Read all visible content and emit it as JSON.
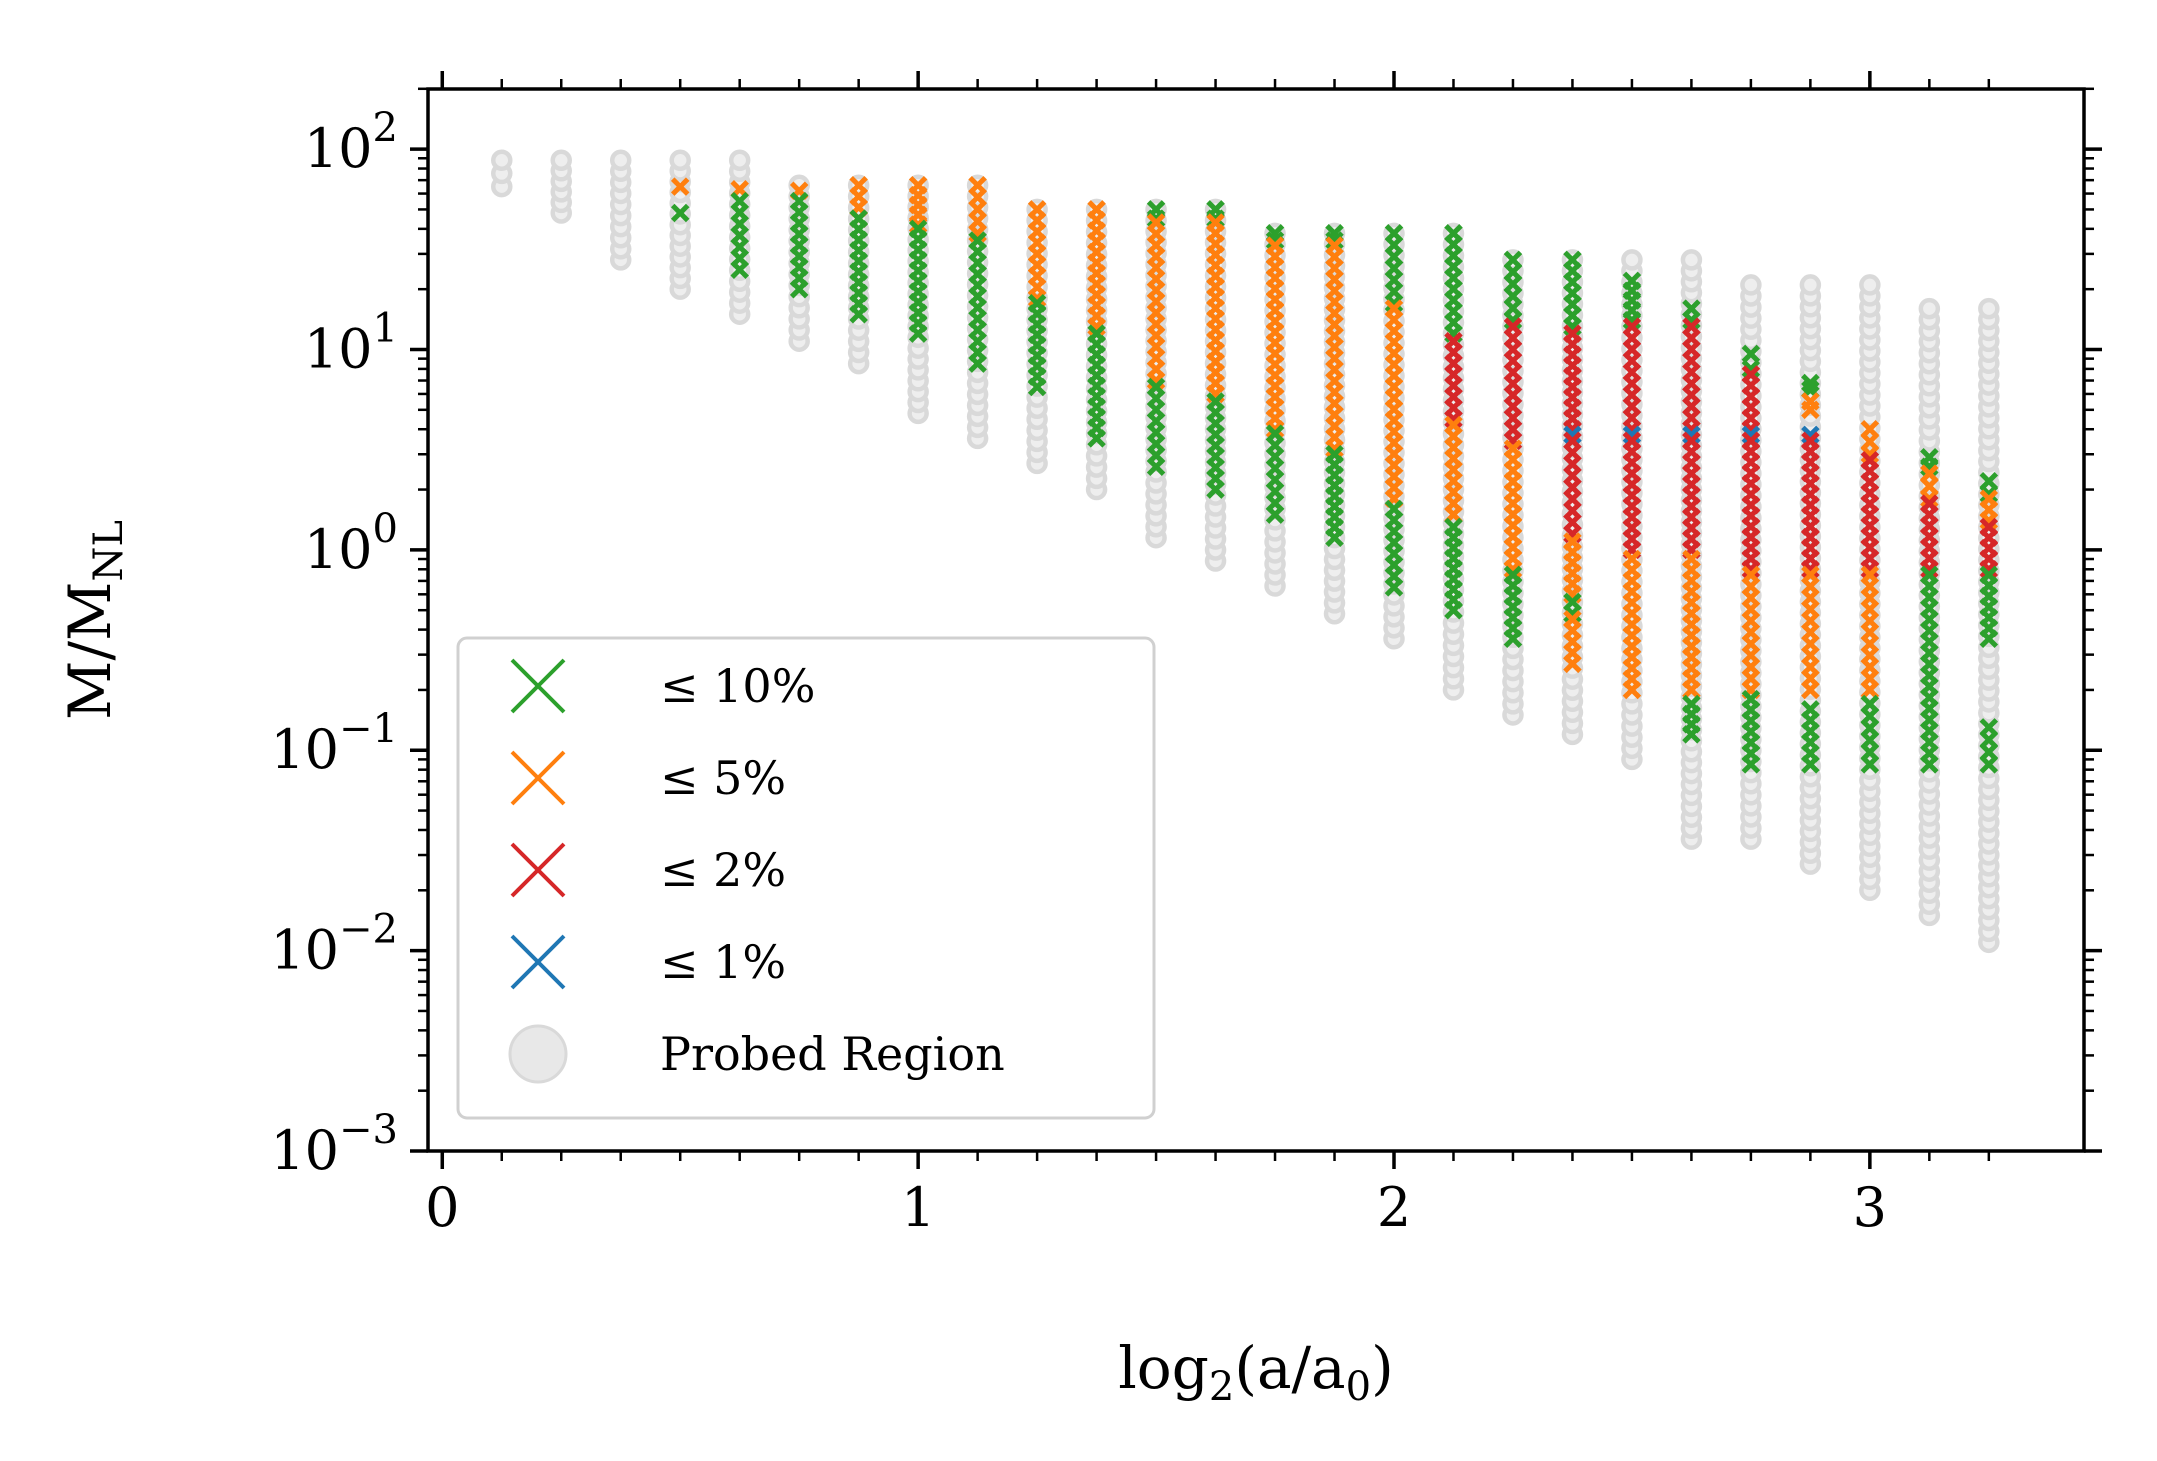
{
  "chart_data": {
    "type": "scatter",
    "xlabel": "log2(a/a0)",
    "ylabel": "M/MNL",
    "xlim": [
      -0.03,
      3.45
    ],
    "ylim_log10": [
      -3,
      2.3
    ],
    "xticks": [
      {
        "value": 0,
        "label": "0"
      },
      {
        "value": 1,
        "label": "1"
      },
      {
        "value": 2,
        "label": "2"
      },
      {
        "value": 3,
        "label": "3"
      }
    ],
    "yticks": [
      {
        "exp": 2,
        "base": "10",
        "sup": "2"
      },
      {
        "exp": 1,
        "base": "10",
        "sup": "1"
      },
      {
        "exp": 0,
        "base": "10",
        "sup": "0"
      },
      {
        "exp": -1,
        "base": "10",
        "sup": "−1"
      },
      {
        "exp": -2,
        "base": "10",
        "sup": "−2"
      },
      {
        "exp": -3,
        "base": "10",
        "sup": "−3"
      }
    ],
    "colors": {
      "probed": "#d9d9d9",
      "p10": "#2ca02c",
      "p5": "#ff7f0e",
      "p2": "#d62728",
      "p1": "#1f77b4"
    },
    "legend": {
      "position": "lower-left",
      "entries": [
        {
          "key": "p10",
          "marker": "x",
          "label": "≤ 10%"
        },
        {
          "key": "p5",
          "marker": "x",
          "label": "≤ 5%"
        },
        {
          "key": "p2",
          "marker": "x",
          "label": "≤ 2%"
        },
        {
          "key": "p1",
          "marker": "x",
          "label": "≤ 1%"
        },
        {
          "key": "probed",
          "marker": "o",
          "label": "Probed Region"
        }
      ]
    },
    "columns": [
      {
        "x": 0.125,
        "probed": [
          65,
          88
        ],
        "accurate": []
      },
      {
        "x": 0.25,
        "probed": [
          48,
          88
        ],
        "accurate": []
      },
      {
        "x": 0.375,
        "probed": [
          28,
          88
        ],
        "accurate": []
      },
      {
        "x": 0.5,
        "probed": [
          20,
          88
        ],
        "accurate": [
          {
            "range": [
              65,
              67
            ],
            "level": "p5"
          },
          {
            "range": [
              48,
              51
            ],
            "level": "p10"
          }
        ]
      },
      {
        "x": 0.625,
        "probed": [
          15,
          88
        ],
        "accurate": [
          {
            "range": [
              63,
              67
            ],
            "level": "p5"
          },
          {
            "range": [
              25,
              55
            ],
            "level": "p10"
          }
        ]
      },
      {
        "x": 0.75,
        "probed": [
          11,
          66
        ],
        "accurate": [
          {
            "range": [
              62,
              66
            ],
            "level": "p5"
          },
          {
            "range": [
              20,
              55
            ],
            "level": "p10"
          }
        ]
      },
      {
        "x": 0.875,
        "probed": [
          8.5,
          66
        ],
        "accurate": [
          {
            "range": [
              45,
              66
            ],
            "level": "p5"
          },
          {
            "range": [
              15,
              45
            ],
            "level": "p10"
          }
        ]
      },
      {
        "x": 1.0,
        "probed": [
          4.8,
          66
        ],
        "accurate": [
          {
            "range": [
              42,
              66
            ],
            "level": "p5"
          },
          {
            "range": [
              12,
              40
            ],
            "level": "p10"
          }
        ]
      },
      {
        "x": 1.125,
        "probed": [
          3.6,
          66
        ],
        "accurate": [
          {
            "range": [
              38,
              66
            ],
            "level": "p5"
          },
          {
            "range": [
              8.5,
              35
            ],
            "level": "p10"
          }
        ]
      },
      {
        "x": 1.25,
        "probed": [
          2.7,
          50
        ],
        "accurate": [
          {
            "range": [
              18,
              50
            ],
            "level": "p5"
          },
          {
            "range": [
              6.5,
              17
            ],
            "level": "p10"
          }
        ]
      },
      {
        "x": 1.375,
        "probed": [
          2.0,
          50
        ],
        "accurate": [
          {
            "range": [
              13,
              50
            ],
            "level": "p5"
          },
          {
            "range": [
              3.6,
              12
            ],
            "level": "p10"
          }
        ]
      },
      {
        "x": 1.5,
        "probed": [
          1.15,
          50
        ],
        "accurate": [
          {
            "range": [
              45,
              50
            ],
            "level": "p10"
          },
          {
            "range": [
              7,
              43
            ],
            "level": "p5"
          },
          {
            "range": [
              2.6,
              6.5
            ],
            "level": "p10"
          }
        ]
      },
      {
        "x": 1.625,
        "probed": [
          0.88,
          50
        ],
        "accurate": [
          {
            "range": [
              45,
              50
            ],
            "level": "p10"
          },
          {
            "range": [
              6,
              43
            ],
            "level": "p5"
          },
          {
            "range": [
              2.0,
              5.5
            ],
            "level": "p10"
          }
        ]
      },
      {
        "x": 1.75,
        "probed": [
          0.66,
          38
        ],
        "accurate": [
          {
            "range": [
              35,
              38
            ],
            "level": "p10"
          },
          {
            "range": [
              4,
              33
            ],
            "level": "p5"
          },
          {
            "range": [
              1.5,
              3.8
            ],
            "level": "p10"
          }
        ]
      },
      {
        "x": 1.875,
        "probed": [
          0.48,
          38
        ],
        "accurate": [
          {
            "range": [
              35,
              38
            ],
            "level": "p10"
          },
          {
            "range": [
              3.2,
              33
            ],
            "level": "p5"
          },
          {
            "range": [
              1.15,
              3.0
            ],
            "level": "p10"
          }
        ]
      },
      {
        "x": 2.0,
        "probed": [
          0.36,
          38
        ],
        "accurate": [
          {
            "range": [
              17,
              38
            ],
            "level": "p10"
          },
          {
            "range": [
              1.8,
              16
            ],
            "level": "p5"
          },
          {
            "range": [
              0.65,
              1.6
            ],
            "level": "p10"
          }
        ]
      },
      {
        "x": 2.125,
        "probed": [
          0.2,
          38
        ],
        "accurate": [
          {
            "range": [
              12,
              38
            ],
            "level": "p10"
          },
          {
            "range": [
              4.5,
              11
            ],
            "level": "p2"
          },
          {
            "range": [
              1.5,
              4.2
            ],
            "level": "p5"
          },
          {
            "range": [
              0.5,
              1.3
            ],
            "level": "p10"
          }
        ]
      },
      {
        "x": 2.25,
        "probed": [
          0.15,
          28
        ],
        "accurate": [
          {
            "range": [
              14,
              28
            ],
            "level": "p10"
          },
          {
            "range": [
              3.5,
              13
            ],
            "level": "p2"
          },
          {
            "range": [
              0.8,
              3.2
            ],
            "level": "p5"
          },
          {
            "range": [
              0.36,
              0.75
            ],
            "level": "p10"
          }
        ]
      },
      {
        "x": 2.375,
        "probed": [
          0.12,
          28
        ],
        "accurate": [
          {
            "range": [
              13,
              28
            ],
            "level": "p10"
          },
          {
            "range": [
              4.0,
              12
            ],
            "level": "p2"
          },
          {
            "range": [
              3.75,
              3.75
            ],
            "level": "p1"
          },
          {
            "range": [
              1.2,
              3.5
            ],
            "level": "p2"
          },
          {
            "range": [
              0.6,
              1.1
            ],
            "level": "p5"
          },
          {
            "range": [
              0.48,
              0.55
            ],
            "level": "p10"
          },
          {
            "range": [
              0.27,
              0.45
            ],
            "level": "p5"
          }
        ]
      },
      {
        "x": 2.5,
        "probed": [
          0.09,
          28
        ],
        "accurate": [
          {
            "range": [
              14,
              22
            ],
            "level": "p10"
          },
          {
            "range": [
              4.0,
              13
            ],
            "level": "p2"
          },
          {
            "range": [
              3.75,
              3.75
            ],
            "level": "p1"
          },
          {
            "range": [
              1.0,
              3.5
            ],
            "level": "p2"
          },
          {
            "range": [
              0.2,
              0.9
            ],
            "level": "p5"
          }
        ]
      },
      {
        "x": 2.625,
        "probed": [
          0.036,
          28
        ],
        "accurate": [
          {
            "range": [
              14,
              16
            ],
            "level": "p10"
          },
          {
            "range": [
              4.0,
              13
            ],
            "level": "p2"
          },
          {
            "range": [
              3.75,
              3.75
            ],
            "level": "p1"
          },
          {
            "range": [
              1.0,
              3.5
            ],
            "level": "p2"
          },
          {
            "range": [
              0.2,
              0.9
            ],
            "level": "p5"
          },
          {
            "range": [
              0.12,
              0.17
            ],
            "level": "p10"
          }
        ]
      },
      {
        "x": 2.75,
        "probed": [
          0.036,
          21
        ],
        "accurate": [
          {
            "range": [
              8,
              9.5
            ],
            "level": "p10"
          },
          {
            "range": [
              4.0,
              7.5
            ],
            "level": "p2"
          },
          {
            "range": [
              3.75,
              3.75
            ],
            "level": "p1"
          },
          {
            "range": [
              0.8,
              3.5
            ],
            "level": "p2"
          },
          {
            "range": [
              0.2,
              0.75
            ],
            "level": "p5"
          },
          {
            "range": [
              0.085,
              0.18
            ],
            "level": "p10"
          }
        ]
      },
      {
        "x": 2.875,
        "probed": [
          0.027,
          21
        ],
        "accurate": [
          {
            "range": [
              6.3,
              6.8
            ],
            "level": "p10"
          },
          {
            "range": [
              5.0,
              5.5
            ],
            "level": "p5"
          },
          {
            "range": [
              3.75,
              3.75
            ],
            "level": "p1"
          },
          {
            "range": [
              0.8,
              3.5
            ],
            "level": "p2"
          },
          {
            "range": [
              0.2,
              0.75
            ],
            "level": "p5"
          },
          {
            "range": [
              0.085,
              0.16
            ],
            "level": "p10"
          }
        ]
      },
      {
        "x": 3.0,
        "probed": [
          0.02,
          21
        ],
        "accurate": [
          {
            "range": [
              3.0,
              4.0
            ],
            "level": "p5"
          },
          {
            "range": [
              0.8,
              2.8
            ],
            "level": "p2"
          },
          {
            "range": [
              0.2,
              0.75
            ],
            "level": "p5"
          },
          {
            "range": [
              0.085,
              0.17
            ],
            "level": "p10"
          }
        ]
      },
      {
        "x": 3.125,
        "probed": [
          0.015,
          16
        ],
        "accurate": [
          {
            "range": [
              2.6,
              2.9
            ],
            "level": "p10"
          },
          {
            "range": [
              1.8,
              2.4
            ],
            "level": "p5"
          },
          {
            "range": [
              0.8,
              1.7
            ],
            "level": "p2"
          },
          {
            "range": [
              0.085,
              0.75
            ],
            "level": "p10"
          }
        ]
      },
      {
        "x": 3.25,
        "probed": [
          0.011,
          16
        ],
        "accurate": [
          {
            "range": [
              1.9,
              2.2
            ],
            "level": "p10"
          },
          {
            "range": [
              1.4,
              1.8
            ],
            "level": "p5"
          },
          {
            "range": [
              0.8,
              1.3
            ],
            "level": "p2"
          },
          {
            "range": [
              0.36,
              0.75
            ],
            "level": "p10"
          },
          {
            "range": [
              0.085,
              0.13
            ],
            "level": "p10"
          }
        ]
      }
    ]
  }
}
